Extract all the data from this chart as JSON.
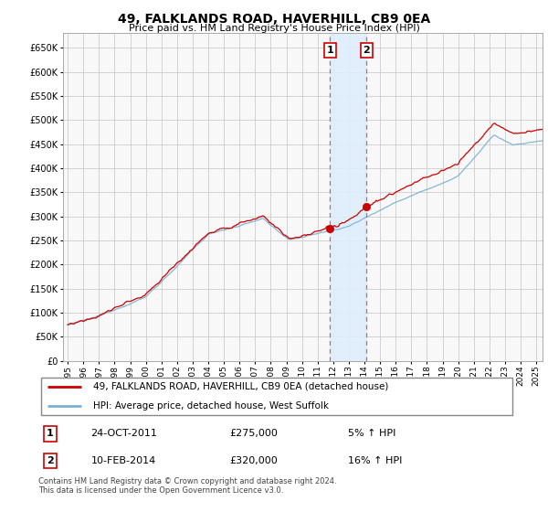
{
  "title": "49, FALKLANDS ROAD, HAVERHILL, CB9 0EA",
  "subtitle": "Price paid vs. HM Land Registry's House Price Index (HPI)",
  "legend_line1": "49, FALKLANDS ROAD, HAVERHILL, CB9 0EA (detached house)",
  "legend_line2": "HPI: Average price, detached house, West Suffolk",
  "transaction1_date": "24-OCT-2011",
  "transaction1_price": 275000,
  "transaction1_label": "5% ↑ HPI",
  "transaction2_date": "10-FEB-2014",
  "transaction2_price": 320000,
  "transaction2_label": "16% ↑ HPI",
  "footer": "Contains HM Land Registry data © Crown copyright and database right 2024.\nThis data is licensed under the Open Government Licence v3.0.",
  "property_color": "#cc0000",
  "hpi_color": "#7bafd4",
  "vline_color": "#cc6666",
  "shade_color": "#ddeeff",
  "grid_color": "#cccccc",
  "background_color": "#f8f8f8",
  "ylim_min": 0,
  "ylim_max": 680000,
  "start_year": 1995,
  "end_year": 2025
}
